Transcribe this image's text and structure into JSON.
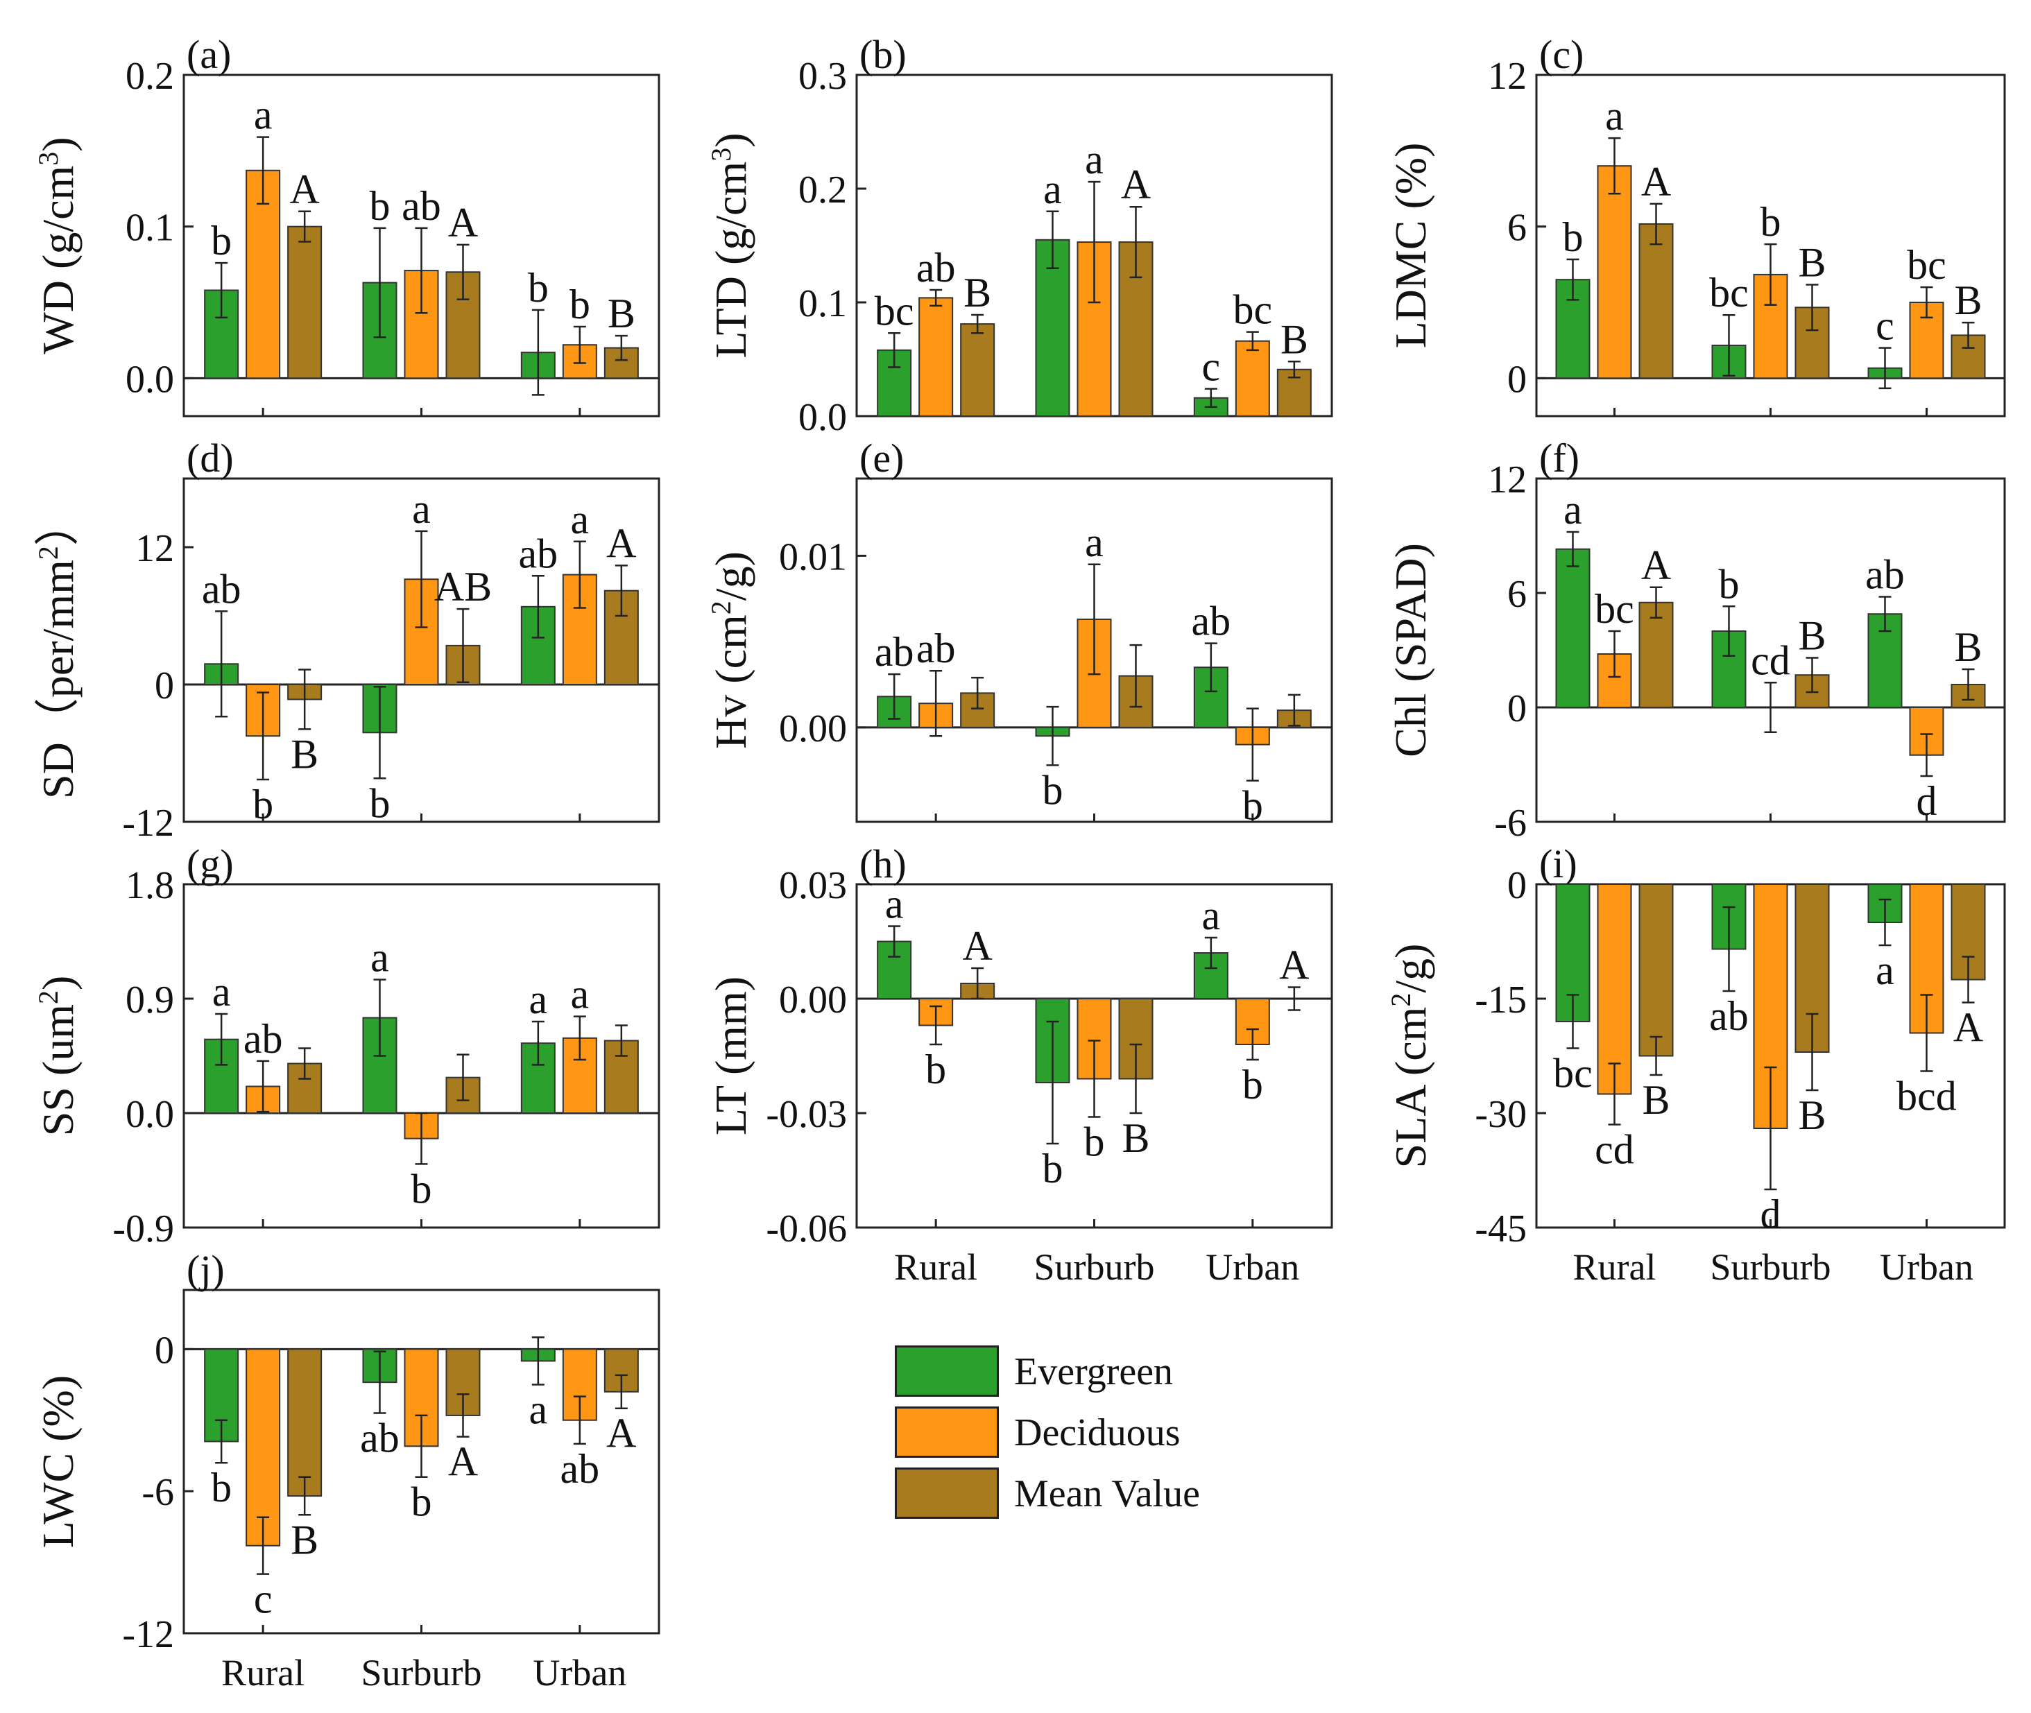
{
  "figure": {
    "legend": [
      {
        "name": "Evergreen",
        "color": "#2ca02c"
      },
      {
        "name": "Deciduous",
        "color": "#ff9614"
      },
      {
        "name": "Mean Value",
        "color": "#a87b1f"
      }
    ]
  },
  "chart_data": [
    {
      "panel": "(a)",
      "type": "bar",
      "ylabel": "WD (g/cm³)",
      "ylim": [
        -0.025,
        0.2
      ],
      "yticks": [
        "0.0",
        "0.1",
        "0.2"
      ],
      "ytick_values": [
        0,
        0.1,
        0.2
      ],
      "categories": [
        "Rural",
        "Surburb",
        "Urban"
      ],
      "show_xtick_labels": false,
      "series": [
        {
          "name": "Evergreen",
          "values": [
            0.058,
            0.063,
            0.017
          ]
        },
        {
          "name": "Deciduous",
          "values": [
            0.137,
            0.071,
            0.022
          ]
        },
        {
          "name": "Mean Value",
          "values": [
            0.1,
            0.07,
            0.02
          ]
        }
      ],
      "errors": [
        [
          0.018,
          0.036,
          0.028
        ],
        [
          0.022,
          0.028,
          0.012
        ],
        [
          0.01,
          0.018,
          0.008
        ]
      ],
      "letters": [
        [
          "b",
          "b",
          "b"
        ],
        [
          "a",
          "ab",
          "b"
        ],
        [
          "A",
          "A",
          "B"
        ]
      ]
    },
    {
      "panel": "(b)",
      "type": "bar",
      "ylabel": "LTD (g/cm³)",
      "ylim": [
        0,
        0.3
      ],
      "yticks": [
        "0.0",
        "0.1",
        "0.2",
        "0.3"
      ],
      "ytick_values": [
        0,
        0.1,
        0.2,
        0.3
      ],
      "categories": [
        "Rural",
        "Surburb",
        "Urban"
      ],
      "show_xtick_labels": false,
      "series": [
        {
          "name": "Evergreen",
          "values": [
            0.058,
            0.155,
            0.016
          ]
        },
        {
          "name": "Deciduous",
          "values": [
            0.104,
            0.153,
            0.066
          ]
        },
        {
          "name": "Mean Value",
          "values": [
            0.081,
            0.153,
            0.041
          ]
        }
      ],
      "errors": [
        [
          0.015,
          0.025,
          0.008
        ],
        [
          0.007,
          0.053,
          0.008
        ],
        [
          0.008,
          0.031,
          0.007
        ]
      ],
      "letters": [
        [
          "bc",
          "a",
          "c"
        ],
        [
          "ab",
          "a",
          "bc"
        ],
        [
          "B",
          "A",
          "B"
        ]
      ]
    },
    {
      "panel": "(c)",
      "type": "bar",
      "ylabel": "LDMC (%)",
      "ylim": [
        -1.5,
        12
      ],
      "yticks": [
        "0",
        "6",
        "12"
      ],
      "ytick_values": [
        0,
        6,
        12
      ],
      "categories": [
        "Rural",
        "Surburb",
        "Urban"
      ],
      "show_xtick_labels": false,
      "series": [
        {
          "name": "Evergreen",
          "values": [
            3.9,
            1.3,
            0.4
          ]
        },
        {
          "name": "Deciduous",
          "values": [
            8.4,
            4.1,
            3.0
          ]
        },
        {
          "name": "Mean Value",
          "values": [
            6.1,
            2.8,
            1.7
          ]
        }
      ],
      "errors": [
        [
          0.8,
          1.2,
          0.8
        ],
        [
          1.1,
          1.2,
          0.6
        ],
        [
          0.8,
          0.9,
          0.5
        ]
      ],
      "letters": [
        [
          "b",
          "bc",
          "c"
        ],
        [
          "a",
          "b",
          "bc"
        ],
        [
          "A",
          "B",
          "B"
        ]
      ]
    },
    {
      "panel": "(d)",
      "type": "bar",
      "ylabel": "SD（per/mm²）",
      "ylim": [
        -12,
        18
      ],
      "yticks": [
        "-12",
        "0",
        "12"
      ],
      "ytick_values": [
        -12,
        0,
        12
      ],
      "categories": [
        "Rural",
        "Surburb",
        "Urban"
      ],
      "show_xtick_labels": false,
      "series": [
        {
          "name": "Evergreen",
          "values": [
            1.8,
            -4.2,
            6.8
          ]
        },
        {
          "name": "Deciduous",
          "values": [
            -4.5,
            9.2,
            9.6
          ]
        },
        {
          "name": "Mean Value",
          "values": [
            -1.3,
            3.4,
            8.2
          ]
        }
      ],
      "errors": [
        [
          4.6,
          4.0,
          2.7
        ],
        [
          3.8,
          4.2,
          2.9
        ],
        [
          2.6,
          3.2,
          2.2
        ]
      ],
      "letters": [
        [
          "ab",
          "b",
          "ab"
        ],
        [
          "b",
          "a",
          "a"
        ],
        [
          "B",
          "AB",
          "A"
        ]
      ]
    },
    {
      "panel": "(e)",
      "type": "bar",
      "ylabel": "Hv (cm²/g)",
      "ylim": [
        -0.0055,
        0.0145
      ],
      "yticks": [
        "0.00",
        "0.01"
      ],
      "ytick_values": [
        0,
        0.01
      ],
      "categories": [
        "Rural",
        "Surburb",
        "Urban"
      ],
      "show_xtick_labels": false,
      "series": [
        {
          "name": "Evergreen",
          "values": [
            0.0018,
            -0.0005,
            0.0035
          ]
        },
        {
          "name": "Deciduous",
          "values": [
            0.0014,
            0.0063,
            -0.001
          ]
        },
        {
          "name": "Mean Value",
          "values": [
            0.002,
            0.003,
            0.001
          ]
        }
      ],
      "errors": [
        [
          0.0013,
          0.0017,
          0.0014
        ],
        [
          0.0019,
          0.0032,
          0.0021
        ],
        [
          0.0009,
          0.0018,
          0.0009
        ]
      ],
      "letters": [
        [
          "ab",
          "b",
          "ab"
        ],
        [
          "ab",
          "a",
          "b"
        ],
        [
          "",
          "",
          ""
        ]
      ]
    },
    {
      "panel": "(f)",
      "type": "bar",
      "ylabel": "Chl (SPAD)",
      "ylim": [
        -6,
        12
      ],
      "yticks": [
        "-6",
        "0",
        "6",
        "12"
      ],
      "ytick_values": [
        -6,
        0,
        6,
        12
      ],
      "categories": [
        "Rural",
        "Surburb",
        "Urban"
      ],
      "show_xtick_labels": false,
      "series": [
        {
          "name": "Evergreen",
          "values": [
            8.3,
            4.0,
            4.9
          ]
        },
        {
          "name": "Deciduous",
          "values": [
            2.8,
            0,
            -2.5
          ]
        },
        {
          "name": "Mean Value",
          "values": [
            5.5,
            1.7,
            1.2
          ]
        }
      ],
      "errors": [
        [
          0.9,
          1.3,
          0.9
        ],
        [
          1.2,
          1.3,
          1.1
        ],
        [
          0.8,
          0.9,
          0.8
        ]
      ],
      "letters": [
        [
          "a",
          "b",
          "ab"
        ],
        [
          "bc",
          "cd",
          "d"
        ],
        [
          "A",
          "B",
          "B"
        ]
      ]
    },
    {
      "panel": "(g)",
      "type": "bar",
      "ylabel": "SS (um²)",
      "ylim": [
        -0.9,
        1.8
      ],
      "yticks": [
        "-0.9",
        "0.0",
        "0.9",
        "1.8"
      ],
      "ytick_values": [
        -0.9,
        0,
        0.9,
        1.8
      ],
      "categories": [
        "Rural",
        "Surburb",
        "Urban"
      ],
      "show_xtick_labels": false,
      "series": [
        {
          "name": "Evergreen",
          "values": [
            0.58,
            0.75,
            0.55
          ]
        },
        {
          "name": "Deciduous",
          "values": [
            0.21,
            -0.2,
            0.59
          ]
        },
        {
          "name": "Mean Value",
          "values": [
            0.39,
            0.28,
            0.57
          ]
        }
      ],
      "errors": [
        [
          0.2,
          0.3,
          0.17
        ],
        [
          0.2,
          0.2,
          0.17
        ],
        [
          0.12,
          0.18,
          0.12
        ]
      ],
      "letters": [
        [
          "a",
          "a",
          "a"
        ],
        [
          "ab",
          "b",
          "a"
        ],
        [
          "",
          "",
          ""
        ]
      ]
    },
    {
      "panel": "(h)",
      "type": "bar",
      "ylabel": "LT (mm)",
      "ylim": [
        -0.06,
        0.03
      ],
      "yticks": [
        "-0.06",
        "-0.03",
        "0.00",
        "0.03"
      ],
      "ytick_values": [
        -0.06,
        -0.03,
        0,
        0.03
      ],
      "categories": [
        "Rural",
        "Surburb",
        "Urban"
      ],
      "show_xtick_labels": true,
      "series": [
        {
          "name": "Evergreen",
          "values": [
            0.015,
            -0.022,
            0.012
          ]
        },
        {
          "name": "Deciduous",
          "values": [
            -0.007,
            -0.021,
            -0.012
          ]
        },
        {
          "name": "Mean Value",
          "values": [
            0.004,
            -0.021,
            0
          ]
        }
      ],
      "errors": [
        [
          0.004,
          0.016,
          0.004
        ],
        [
          0.005,
          0.01,
          0.004
        ],
        [
          0.004,
          0.009,
          0.003
        ]
      ],
      "letters": [
        [
          "a",
          "b",
          "a"
        ],
        [
          "b",
          "b",
          "b"
        ],
        [
          "A",
          "B",
          "A"
        ]
      ]
    },
    {
      "panel": "(i)",
      "type": "bar",
      "ylabel": "SLA (cm²/g)",
      "ylim": [
        -45,
        0
      ],
      "yticks": [
        "-45",
        "-30",
        "-15",
        "0"
      ],
      "ytick_values": [
        -45,
        -30,
        -15,
        0
      ],
      "categories": [
        "Rural",
        "Surburb",
        "Urban"
      ],
      "show_xtick_labels": true,
      "series": [
        {
          "name": "Evergreen",
          "values": [
            -18,
            -8.5,
            -5
          ]
        },
        {
          "name": "Deciduous",
          "values": [
            -27.5,
            -32,
            -19.5
          ]
        },
        {
          "name": "Mean Value",
          "values": [
            -22.5,
            -22,
            -12.5
          ]
        }
      ],
      "errors": [
        [
          3.5,
          5.5,
          3
        ],
        [
          4,
          8,
          5
        ],
        [
          2.5,
          5,
          3
        ]
      ],
      "letters": [
        [
          "bc",
          "ab",
          "a"
        ],
        [
          "cd",
          "d",
          "bcd"
        ],
        [
          "B",
          "B",
          "A"
        ]
      ]
    },
    {
      "panel": "(j)",
      "type": "bar",
      "ylabel": "LWC (%)",
      "ylim": [
        -12,
        2.5
      ],
      "yticks": [
        "-12",
        "-6",
        "0"
      ],
      "ytick_values": [
        -12,
        -6,
        0
      ],
      "categories": [
        "Rural",
        "Surburb",
        "Urban"
      ],
      "show_xtick_labels": true,
      "series": [
        {
          "name": "Evergreen",
          "values": [
            -3.9,
            -1.4,
            -0.5
          ]
        },
        {
          "name": "Deciduous",
          "values": [
            -8.3,
            -4.1,
            -3.0
          ]
        },
        {
          "name": "Mean Value",
          "values": [
            -6.2,
            -2.8,
            -1.8
          ]
        }
      ],
      "errors": [
        [
          0.9,
          1.3,
          1.0
        ],
        [
          1.2,
          1.3,
          1.0
        ],
        [
          0.8,
          0.9,
          0.7
        ]
      ],
      "letters": [
        [
          "b",
          "ab",
          "a"
        ],
        [
          "c",
          "b",
          "ab"
        ],
        [
          "B",
          "A",
          "A"
        ]
      ]
    }
  ]
}
